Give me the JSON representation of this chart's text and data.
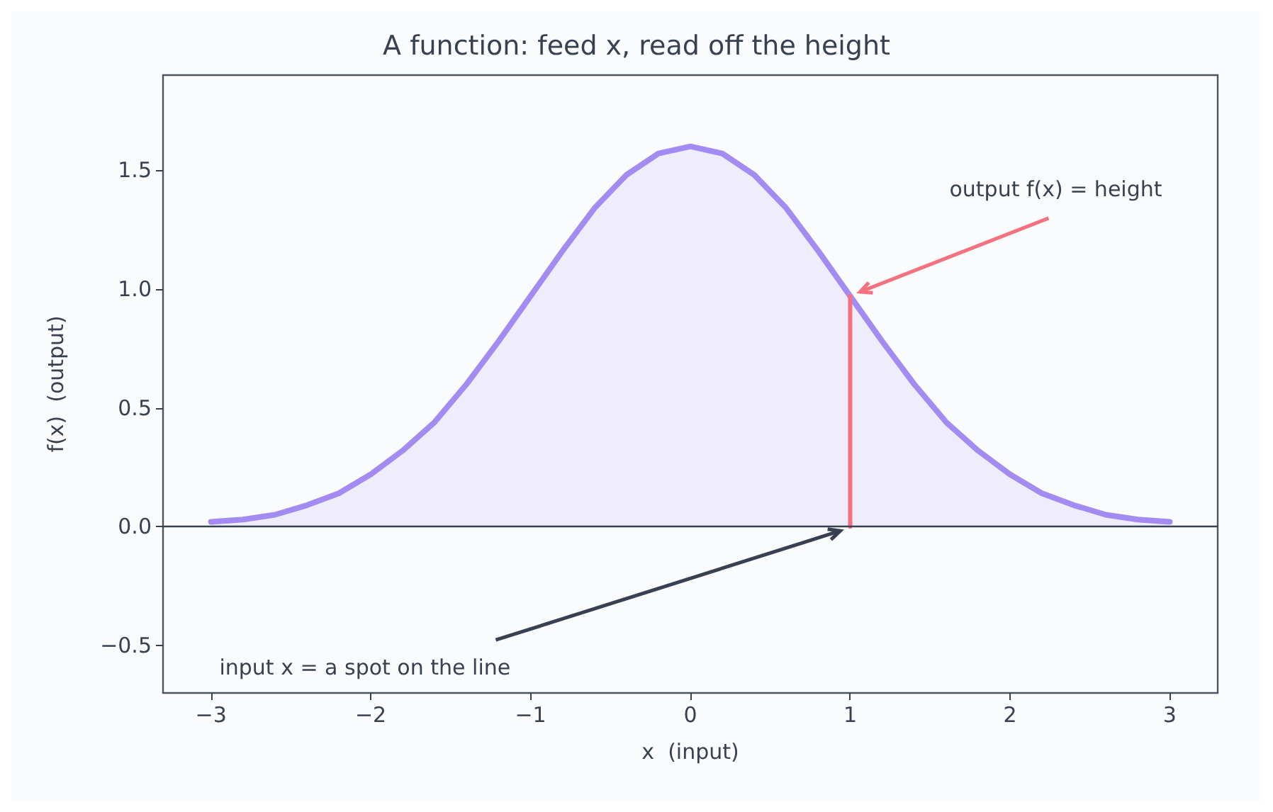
{
  "chart_data": {
    "type": "area",
    "title": "A function: feed x, read off the height",
    "xlabel": "x  (input)",
    "ylabel": "f(x)  (output)",
    "series": [
      {
        "color": "#a48bf2",
        "x": [
          -3,
          -2.8,
          -2.6,
          -2.4,
          -2.2,
          -2,
          -1.8,
          -1.6,
          -1.4,
          -1.2,
          -1,
          -0.8,
          -0.6,
          -0.4,
          -0.2,
          0,
          0.2,
          0.4,
          0.6,
          0.8,
          1,
          1.2,
          1.4,
          1.6,
          1.8,
          2,
          2.2,
          2.4,
          2.6,
          2.8,
          3
        ],
        "values": [
          0.02,
          0.03,
          0.05,
          0.09,
          0.14,
          0.22,
          0.32,
          0.44,
          0.6,
          0.78,
          0.97,
          1.16,
          1.34,
          1.48,
          1.57,
          1.6,
          1.57,
          1.48,
          1.34,
          1.16,
          0.97,
          0.78,
          0.6,
          0.44,
          0.32,
          0.22,
          0.14,
          0.09,
          0.05,
          0.03,
          0.02
        ]
      },
      {
        "type": "line",
        "color": "#f4727f",
        "x": [
          1,
          1
        ],
        "values": [
          0,
          0.97
        ]
      }
    ],
    "ref_lines": [
      {
        "axis": "y",
        "value": 0,
        "color": "#374151"
      }
    ],
    "annotations": [
      {
        "text": "output f(x) = height",
        "x": 1,
        "y": 0.97
      },
      {
        "text": "input x = a spot on the line",
        "x": 1,
        "y": 0
      }
    ],
    "xlim": [
      -3.3,
      3.3
    ],
    "ylim": [
      -0.7,
      1.9
    ],
    "xticks": [
      {
        "value": -3,
        "label": "−3"
      },
      {
        "value": -2,
        "label": "−2"
      },
      {
        "value": -1,
        "label": "−1"
      },
      0,
      1,
      2,
      3
    ],
    "yticks": [
      {
        "value": -0.5,
        "label": "−0.5"
      },
      {
        "value": 0,
        "label": "0.0"
      },
      {
        "value": 0.5,
        "label": "0.5"
      },
      {
        "value": 1,
        "label": "1.0"
      },
      {
        "value": 1.5,
        "label": "1.5"
      }
    ]
  }
}
